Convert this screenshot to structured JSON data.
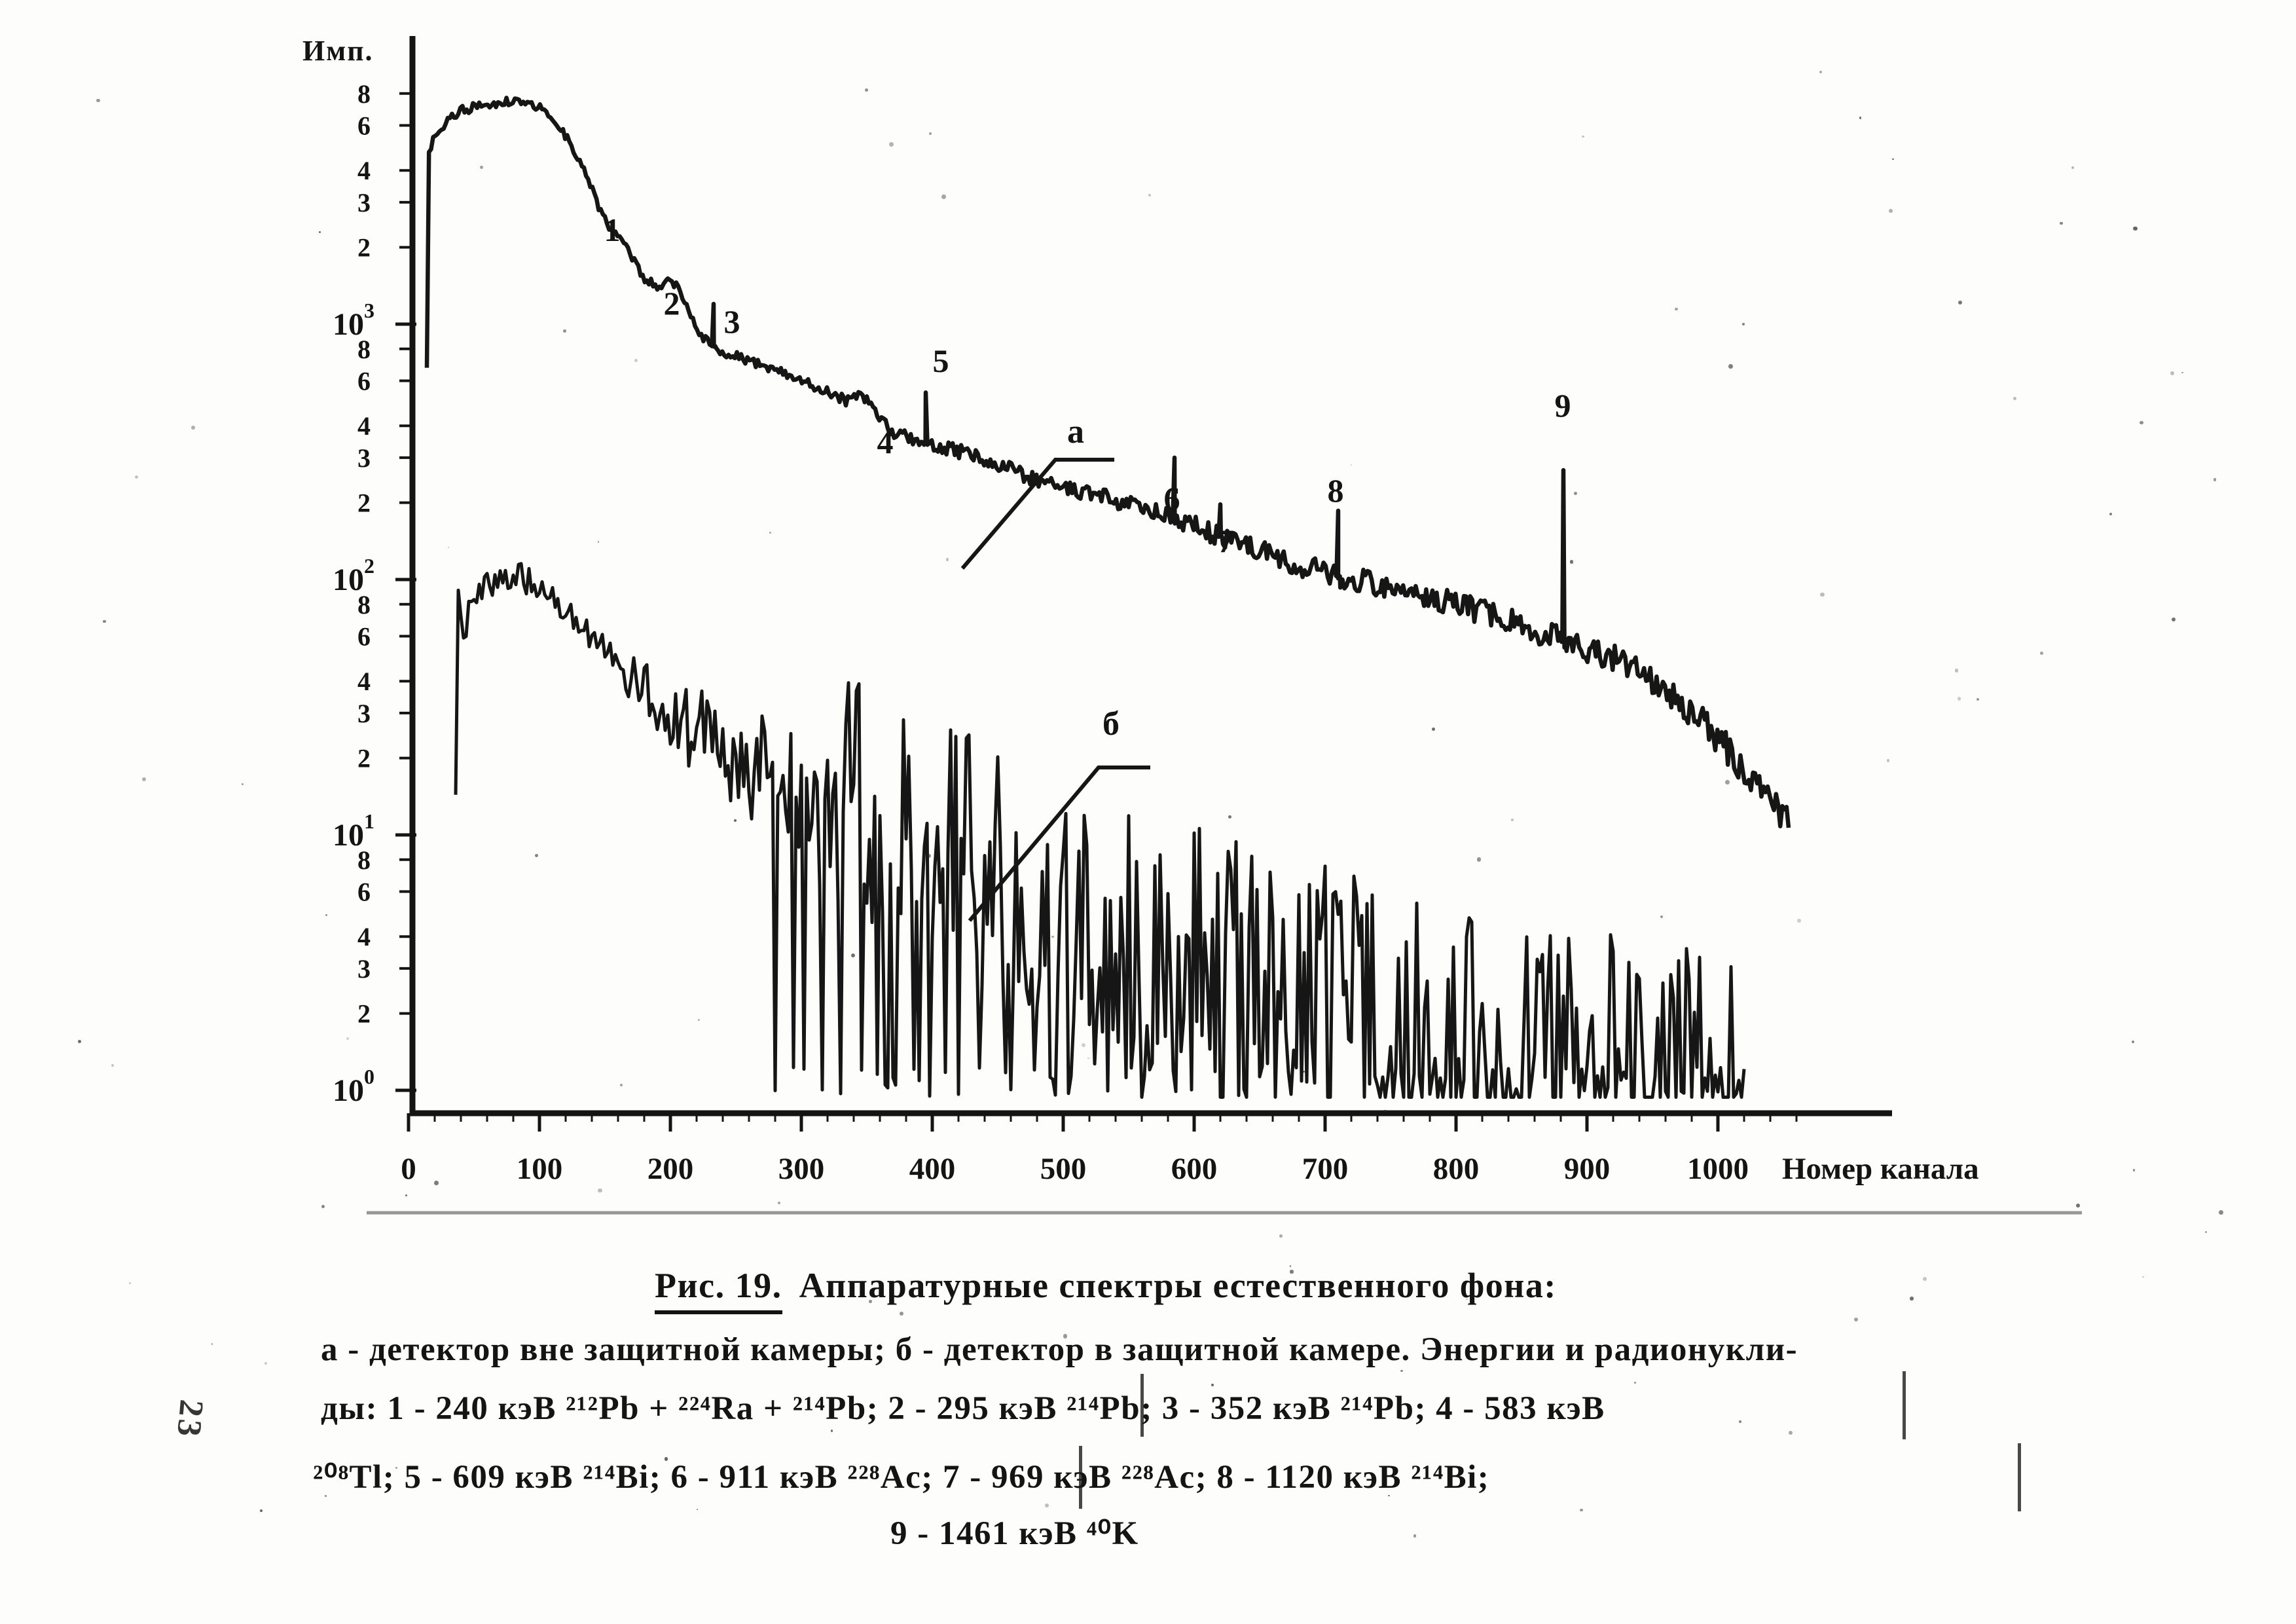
{
  "page": {
    "margin_note": "23"
  },
  "figure": {
    "label": "Рис. 19.",
    "title": "Аппаратурные спектры естественного фона:",
    "caption_lines": [
      "а - детектор вне защитной камеры; б - детектор в защитной камере. Энергии и радионукли-",
      "ды: 1 - 240 кэВ ²¹²Pb + ²²⁴Ra + ²¹⁴Pb; 2 - 295 кэВ ²¹⁴Pb; 3 - 352 кэВ ²¹⁴Pb; 4 - 583 кэВ",
      "²⁰⁸Tl; 5 - 609 кэВ ²¹⁴Bi; 6 - 911 кэВ ²²⁸Ac; 7 - 969 кэВ ²²⁸Ac; 8 - 1120 кэВ ²¹⁴Bi;",
      "9 - 1461 кэВ ⁴⁰K"
    ]
  },
  "chart_data": {
    "type": "line",
    "title": "Аппаратурные спектры естественного фона",
    "xlabel": "Номер канала",
    "ylabel": "Имп.",
    "y_scale": "log",
    "ylim": [
      1,
      12000
    ],
    "xlim": [
      0,
      1100
    ],
    "grid": false,
    "x_ticks": [
      0,
      100,
      200,
      300,
      400,
      500,
      600,
      700,
      800,
      900,
      1000
    ],
    "y_decades": [
      {
        "base": "10",
        "exp": "0",
        "value": 1
      },
      {
        "base": "10",
        "exp": "1",
        "value": 10
      },
      {
        "base": "10",
        "exp": "2",
        "value": 100
      },
      {
        "base": "10",
        "exp": "3",
        "value": 1000
      }
    ],
    "y_minor_labels": [
      2,
      3,
      4,
      6,
      8
    ],
    "series": [
      {
        "id": "a",
        "name": "а — детектор вне защитной камеры",
        "points": [
          [
            14,
            650
          ],
          [
            15,
            4800
          ],
          [
            22,
            5600
          ],
          [
            38,
            6800
          ],
          [
            60,
            7300
          ],
          [
            80,
            7500
          ],
          [
            100,
            7100
          ],
          [
            113,
            6200
          ],
          [
            125,
            5000
          ],
          [
            138,
            3600
          ],
          [
            150,
            2500
          ],
          [
            160,
            1900
          ],
          [
            170,
            1650
          ],
          [
            180,
            1500
          ],
          [
            192,
            1360
          ],
          [
            206,
            1240
          ],
          [
            218,
            1000
          ],
          [
            226,
            880
          ],
          [
            233,
            820
          ],
          [
            240,
            780
          ],
          [
            253,
            740
          ],
          [
            270,
            690
          ],
          [
            288,
            640
          ],
          [
            305,
            590
          ],
          [
            318,
            555
          ],
          [
            333,
            500
          ],
          [
            348,
            440
          ],
          [
            360,
            405
          ],
          [
            375,
            370
          ],
          [
            385,
            350
          ],
          [
            395,
            337
          ],
          [
            410,
            325
          ],
          [
            423,
            316
          ],
          [
            443,
            290
          ],
          [
            463,
            265
          ],
          [
            488,
            240
          ],
          [
            513,
            222
          ],
          [
            540,
            205
          ],
          [
            565,
            188
          ],
          [
            585,
            175
          ],
          [
            605,
            158
          ],
          [
            620,
            147
          ],
          [
            640,
            135
          ],
          [
            663,
            123
          ],
          [
            685,
            112
          ],
          [
            710,
            103
          ],
          [
            735,
            97
          ],
          [
            763,
            91
          ],
          [
            788,
            84
          ],
          [
            813,
            77
          ],
          [
            838,
            70
          ],
          [
            860,
            63
          ],
          [
            882,
            57
          ],
          [
            900,
            53
          ],
          [
            913,
            51
          ],
          [
            938,
            43
          ],
          [
            963,
            36
          ],
          [
            988,
            28
          ],
          [
            1013,
            20
          ],
          [
            1035,
            14
          ],
          [
            1055,
            11
          ]
        ]
      },
      {
        "id": "b",
        "name": "б — детектор в защитной камере",
        "points": [
          [
            36,
            14
          ],
          [
            38,
            100
          ],
          [
            41,
            60
          ],
          [
            46,
            78
          ],
          [
            55,
            92
          ],
          [
            68,
            103
          ],
          [
            80,
            108
          ],
          [
            92,
            102
          ],
          [
            105,
            90
          ],
          [
            118,
            78
          ],
          [
            132,
            66
          ],
          [
            148,
            55
          ],
          [
            165,
            45
          ],
          [
            182,
            38
          ],
          [
            200,
            32
          ],
          [
            220,
            27
          ],
          [
            240,
            23
          ],
          [
            258,
            20
          ],
          [
            275,
            17.5
          ],
          [
            295,
            15
          ],
          [
            320,
            12.5
          ],
          [
            345,
            10.5
          ],
          [
            370,
            9
          ],
          [
            400,
            7.6
          ],
          [
            430,
            6.5
          ],
          [
            465,
            5.4
          ],
          [
            500,
            4.5
          ],
          [
            535,
            3.8
          ],
          [
            570,
            3.2
          ],
          [
            605,
            2.8
          ],
          [
            640,
            2.45
          ],
          [
            675,
            2.15
          ],
          [
            710,
            1.95
          ],
          [
            745,
            1.75
          ],
          [
            780,
            1.6
          ],
          [
            815,
            1.45
          ],
          [
            850,
            1.33
          ],
          [
            885,
            1.22
          ],
          [
            920,
            1.12
          ],
          [
            955,
            1.05
          ],
          [
            990,
            1.0
          ],
          [
            1020,
            0.97
          ]
        ]
      }
    ],
    "peaks": [
      {
        "n": "1",
        "energy_keV": 240,
        "nuclide": "²¹²Pb + ²²⁴Ra + ²¹⁴Pb",
        "channel": 163,
        "top": 2200,
        "kind": "bump"
      },
      {
        "n": "2",
        "energy_keV": 295,
        "nuclide": "²¹⁴Pb",
        "channel": 203,
        "top": 1450,
        "kind": "bump"
      },
      {
        "n": "3",
        "energy_keV": 352,
        "nuclide": "²¹⁴Pb",
        "channel": 233,
        "top": 1200,
        "kind": "spike"
      },
      {
        "n": "4",
        "energy_keV": 583,
        "nuclide": "²⁰⁸Tl",
        "channel": 348,
        "top": 520,
        "kind": "bump"
      },
      {
        "n": "5",
        "energy_keV": 609,
        "nuclide": "²¹⁴Bi",
        "channel": 395,
        "top": 540,
        "kind": "spike"
      },
      {
        "n": "6",
        "energy_keV": 911,
        "nuclide": "²²⁸Ac",
        "channel": 585,
        "top": 300,
        "kind": "spike"
      },
      {
        "n": "7",
        "energy_keV": 969,
        "nuclide": "²²⁸Ac",
        "channel": 620,
        "top": 197,
        "kind": "spike"
      },
      {
        "n": "8",
        "energy_keV": 1120,
        "nuclide": "²¹⁴Bi",
        "channel": 710,
        "top": 186,
        "kind": "spike"
      },
      {
        "n": "9",
        "energy_keV": 1461,
        "nuclide": "⁴⁰K",
        "channel": 882,
        "top": 268,
        "kind": "spike"
      }
    ],
    "curve_labels": [
      {
        "id": "a",
        "text": "а"
      },
      {
        "id": "b",
        "text": "б"
      }
    ]
  }
}
